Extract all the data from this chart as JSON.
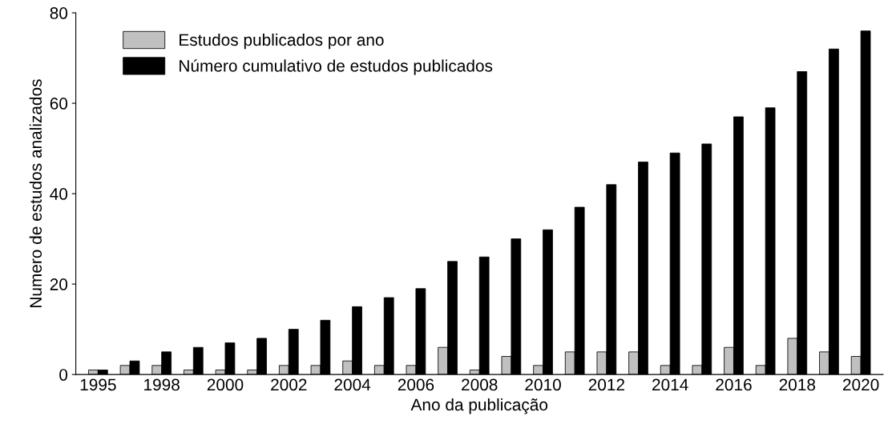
{
  "chart_data": {
    "type": "bar",
    "xlabel": "Ano da publicação",
    "ylabel": "Numero de estudos analizados",
    "categories": [
      "1995",
      null,
      "1998",
      null,
      "2000",
      null,
      "2002",
      null,
      "2004",
      null,
      "2006",
      null,
      "2008",
      null,
      "2010",
      null,
      "2012",
      null,
      "2014",
      null,
      "2016",
      null,
      "2018",
      null,
      "2020"
    ],
    "series": [
      {
        "name": "Estudos publicados por ano",
        "color": "#c0c0c0",
        "values": [
          1,
          2,
          2,
          1,
          1,
          1,
          2,
          2,
          3,
          2,
          2,
          6,
          1,
          4,
          2,
          5,
          5,
          5,
          2,
          2,
          6,
          2,
          8,
          5,
          4
        ]
      },
      {
        "name": "Número cumulativo de estudos publicados",
        "color": "#000000",
        "values": [
          1,
          3,
          5,
          6,
          7,
          8,
          10,
          12,
          15,
          17,
          19,
          25,
          26,
          30,
          32,
          37,
          42,
          47,
          49,
          51,
          57,
          59,
          67,
          72,
          76
        ]
      }
    ],
    "ylim": [
      0,
      80
    ],
    "yticks": [
      0,
      20,
      40,
      60,
      80
    ],
    "grid": false,
    "legend": "top left"
  }
}
